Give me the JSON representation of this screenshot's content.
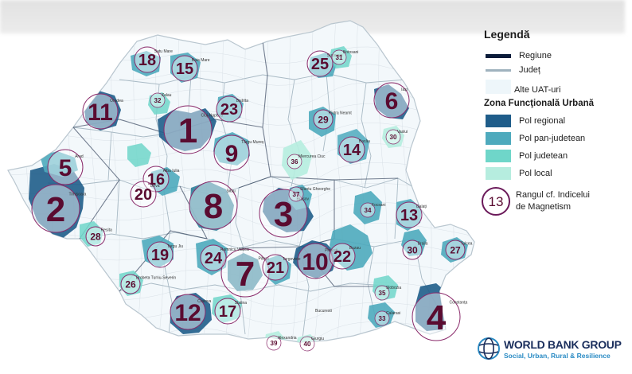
{
  "legend": {
    "title": "Legendă",
    "items": [
      {
        "label": "Regiune",
        "kind": "line",
        "color": "#0b1c3a"
      },
      {
        "label": "Județ",
        "kind": "line",
        "color": "#9fb2be"
      },
      {
        "label": "Alte UAT-uri",
        "kind": "box",
        "color": "#eef6fa"
      }
    ],
    "zone_title": "Zona Funcţională Urbană",
    "zones": [
      {
        "label": "Pol regional",
        "color": "#1f5d8a"
      },
      {
        "label": "Pol pan-judetean",
        "color": "#4eaabd"
      },
      {
        "label": "Pol judetean",
        "color": "#6fd6c9"
      },
      {
        "label": "Pol local",
        "color": "#b6eddf"
      }
    ],
    "rank_sample": "13",
    "rank_label_1": "Rangul cf. Indicelui",
    "rank_label_2": "de Magnetism",
    "rank_color": "#5a0b30"
  },
  "map": {
    "cities": [
      {
        "rank": "1",
        "name": "Cluj-Napoca",
        "type": "regional",
        "size": "xl"
      },
      {
        "rank": "2",
        "name": "Timișoara",
        "type": "regional",
        "size": "xl"
      },
      {
        "rank": "3",
        "name": "Brașov",
        "type": "regional",
        "size": "xl"
      },
      {
        "rank": "4",
        "name": "Constanța",
        "type": "regional",
        "size": "xl"
      },
      {
        "rank": "5",
        "name": "Arad",
        "type": "panjud",
        "size": "l"
      },
      {
        "rank": "6",
        "name": "Iași",
        "type": "regional",
        "size": "l"
      },
      {
        "rank": "7",
        "name": "Pitești",
        "type": "panjud",
        "size": "xl"
      },
      {
        "rank": "8",
        "name": "Sibiu",
        "type": "panjud",
        "size": "xl"
      },
      {
        "rank": "9",
        "name": "Târgu Mureș",
        "type": "panjud",
        "size": "l"
      },
      {
        "rank": "10",
        "name": "Ploiești",
        "type": "regional",
        "size": "l"
      },
      {
        "rank": "11",
        "name": "Oradea",
        "type": "regional",
        "size": "l"
      },
      {
        "rank": "12",
        "name": "Craiova",
        "type": "regional",
        "size": "l"
      },
      {
        "rank": "13",
        "name": "Galați",
        "type": "panjud",
        "size": "m"
      },
      {
        "rank": "14",
        "name": "Bacău",
        "type": "panjud",
        "size": "m"
      },
      {
        "rank": "15",
        "name": "Baia Mare",
        "type": "panjud",
        "size": "m"
      },
      {
        "rank": "16",
        "name": "Alba Iulia",
        "type": "panjud",
        "size": "m"
      },
      {
        "rank": "17",
        "name": "Slatina",
        "type": "judetean",
        "size": "m"
      },
      {
        "rank": "18",
        "name": "Satu Mare",
        "type": "panjud",
        "size": "m"
      },
      {
        "rank": "19",
        "name": "Targu Jiu",
        "type": "panjud",
        "size": "m"
      },
      {
        "rank": "20",
        "name": "Deva",
        "type": "judetean",
        "size": "m"
      },
      {
        "rank": "21",
        "name": "Targoviste",
        "type": "panjud",
        "size": "m"
      },
      {
        "rank": "22",
        "name": "Buzau",
        "type": "panjud",
        "size": "m"
      },
      {
        "rank": "23",
        "name": "Bistrita",
        "type": "panjud",
        "size": "m"
      },
      {
        "rank": "24",
        "name": "Ramnicu Valcea",
        "type": "panjud",
        "size": "m"
      },
      {
        "rank": "25",
        "name": "Suceava",
        "type": "panjud",
        "size": "m"
      },
      {
        "rank": "26",
        "name": "Drobeta Turnu-Severin",
        "type": "judetean",
        "size": "s"
      },
      {
        "rank": "27",
        "name": "Tulcea",
        "type": "panjud",
        "size": "s"
      },
      {
        "rank": "28",
        "name": "Resita",
        "type": "judetean",
        "size": "s"
      },
      {
        "rank": "29",
        "name": "Piatra Neamt",
        "type": "panjud",
        "size": "s"
      },
      {
        "rank": "30",
        "name": "Braila",
        "type": "panjud",
        "size": "s"
      },
      {
        "rank": "30",
        "name": "Vaslui",
        "type": "local",
        "size": "xs"
      },
      {
        "rank": "31",
        "name": "Botosani",
        "type": "judetean",
        "size": "xs"
      },
      {
        "rank": "32",
        "name": "Zalau",
        "type": "judetean",
        "size": "xs"
      },
      {
        "rank": "33",
        "name": "Calarasi",
        "type": "panjud",
        "size": "xs"
      },
      {
        "rank": "34",
        "name": "Focsani",
        "type": "panjud",
        "size": "xs"
      },
      {
        "rank": "35",
        "name": "Slobozia",
        "type": "judetean",
        "size": "xs"
      },
      {
        "rank": "36",
        "name": "Miercurea Ciuc",
        "type": "local",
        "size": "xs"
      },
      {
        "rank": "37",
        "name": "Sfantu Gheorghe",
        "type": "panjud",
        "size": "xs"
      },
      {
        "rank": "39",
        "name": "Alexandria",
        "type": "local",
        "size": "xs"
      },
      {
        "rank": "40",
        "name": "Giurgiu",
        "type": "local",
        "size": "xs"
      }
    ],
    "extra_labels": [
      "Bucuresti"
    ]
  },
  "logo": {
    "name": "WORLD BANK GROUP",
    "subtitle": "Social, Urban, Rural & Resilience"
  }
}
